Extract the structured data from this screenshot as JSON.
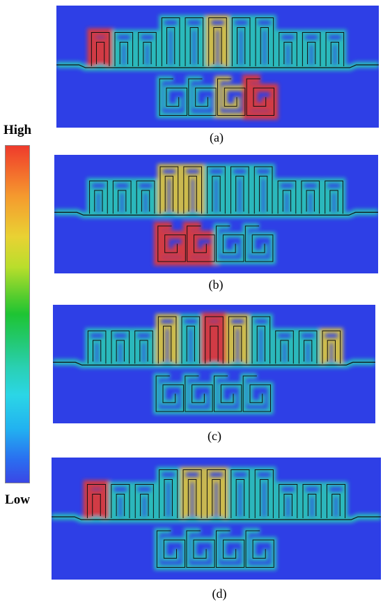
{
  "legend": {
    "high": "High",
    "low": "Low"
  },
  "panels": [
    {
      "caption": "(a)",
      "hot_resonators": [
        "top-1",
        "bottom-4"
      ],
      "warm_resonators": [
        "top-6",
        "bottom-3"
      ]
    },
    {
      "caption": "(b)",
      "hot_resonators": [
        "bottom-1",
        "bottom-2"
      ],
      "warm_resonators": [
        "top-5",
        "top-4"
      ]
    },
    {
      "caption": "(c)",
      "hot_resonators": [
        "top-6"
      ],
      "warm_resonators": [
        "top-4",
        "top-7",
        "top-11"
      ]
    },
    {
      "caption": "(d)",
      "hot_resonators": [
        "top-1"
      ],
      "warm_resonators": [
        "top-5",
        "top-6"
      ]
    }
  ],
  "colors": {
    "background": "#2e3fe6",
    "hot": "#ee3b2c",
    "warm": "#e9d233",
    "mid": "#2ad0b4",
    "line": "#111111"
  }
}
